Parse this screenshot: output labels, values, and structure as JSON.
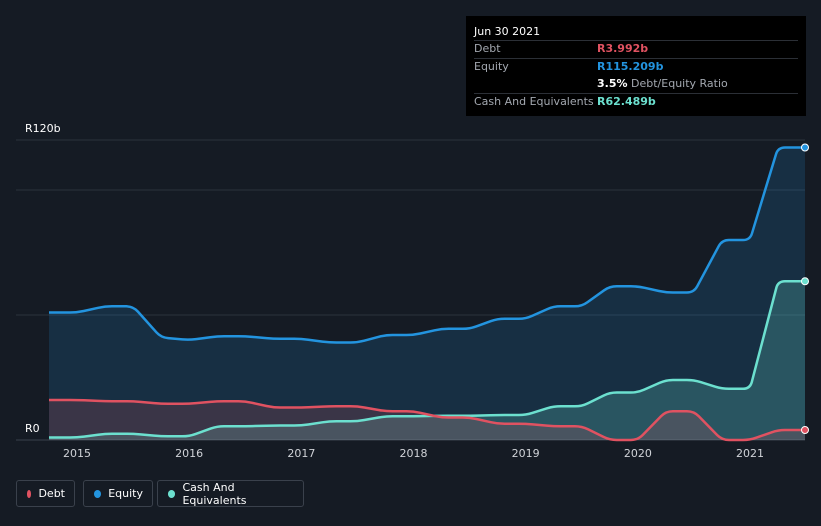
{
  "tooltip": {
    "date": "Jun 30 2021",
    "debt_label": "Debt",
    "debt_value": "R3.992b",
    "equity_label": "Equity",
    "equity_value": "R115.209b",
    "ratio_value": "3.5%",
    "ratio_label": "Debt/Equity Ratio",
    "cash_label": "Cash And Equivalents",
    "cash_value": "R62.489b"
  },
  "legend": {
    "debt": "Debt",
    "equity": "Equity",
    "cash": "Cash And Equivalents"
  },
  "colors": {
    "debt": "#e05261",
    "equity": "#2394df",
    "cash": "#6ce0cf"
  },
  "chart_data": {
    "type": "area",
    "title": "",
    "xlabel": "",
    "ylabel": "",
    "ylim": [
      0,
      120
    ],
    "y_tick_labels": [
      "R120b",
      "R0"
    ],
    "y_gridlines": [
      0,
      50,
      100,
      120
    ],
    "x_ticks": [
      2015,
      2016,
      2017,
      2018,
      2019,
      2020,
      2021
    ],
    "x_tick_labels": [
      "2015",
      "2016",
      "2017",
      "2018",
      "2019",
      "2020",
      "2021"
    ],
    "series": [
      {
        "name": "Equity",
        "key": "equity",
        "x": [
          2014.75,
          2015.0,
          2015.25,
          2015.5,
          2015.75,
          2016.0,
          2016.25,
          2016.5,
          2016.75,
          2017.0,
          2017.25,
          2017.5,
          2017.75,
          2018.0,
          2018.25,
          2018.5,
          2018.75,
          2019.0,
          2019.25,
          2019.5,
          2019.75,
          2020.0,
          2020.25,
          2020.5,
          2020.75,
          2021.0,
          2021.25,
          2021.5
        ],
        "values": [
          51,
          51,
          53.5,
          53.5,
          41,
          40,
          41.5,
          41.5,
          40.5,
          40.5,
          39,
          39,
          42,
          42,
          44.5,
          44.5,
          48.5,
          48.5,
          53.5,
          53.5,
          61.5,
          61.5,
          59,
          59,
          80,
          80,
          117,
          117
        ]
      },
      {
        "name": "Cash And Equivalents",
        "key": "cash",
        "x": [
          2014.75,
          2015.0,
          2015.25,
          2015.5,
          2015.75,
          2016.0,
          2016.25,
          2016.5,
          2016.75,
          2017.0,
          2017.25,
          2017.5,
          2017.75,
          2018.0,
          2018.25,
          2018.5,
          2018.75,
          2019.0,
          2019.25,
          2019.5,
          2019.75,
          2020.0,
          2020.25,
          2020.5,
          2020.75,
          2021.0,
          2021.25,
          2021.5
        ],
        "values": [
          1,
          1,
          2.5,
          2.5,
          1.5,
          1.5,
          5.5,
          5.5,
          5.8,
          5.8,
          7.5,
          7.5,
          9.5,
          9.5,
          9.7,
          9.7,
          10,
          10,
          13.5,
          13.5,
          19,
          19,
          24,
          24,
          20.5,
          20.5,
          63.5,
          63.5
        ]
      },
      {
        "name": "Debt",
        "key": "debt",
        "x": [
          2014.75,
          2015.0,
          2015.25,
          2015.5,
          2015.75,
          2016.0,
          2016.25,
          2016.5,
          2016.75,
          2017.0,
          2017.25,
          2017.5,
          2017.75,
          2018.0,
          2018.25,
          2018.5,
          2018.75,
          2019.0,
          2019.25,
          2019.5,
          2019.75,
          2020.0,
          2020.25,
          2020.5,
          2020.75,
          2021.0,
          2021.25,
          2021.5
        ],
        "values": [
          16,
          16,
          15.5,
          15.5,
          14.5,
          14.5,
          15.5,
          15.5,
          13,
          13,
          13.5,
          13.5,
          11.5,
          11.5,
          9,
          9,
          6.5,
          6.5,
          5.5,
          5.5,
          0,
          0,
          11.5,
          11.5,
          0,
          0,
          4,
          4
        ]
      }
    ]
  }
}
